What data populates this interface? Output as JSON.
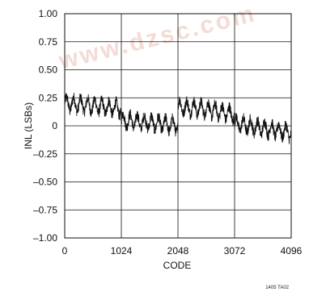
{
  "chart_data": {
    "type": "line",
    "title": "",
    "xlabel": "CODE",
    "ylabel": "INL (LSBs)",
    "xlim": [
      0,
      4096
    ],
    "ylim": [
      -1.0,
      1.0
    ],
    "x_ticks": [
      0,
      1024,
      2048,
      3072,
      4096
    ],
    "x_tick_labels": [
      "0",
      "1024",
      "2048",
      "3072",
      "4096"
    ],
    "y_ticks": [
      1.0,
      0.75,
      0.5,
      0.25,
      0,
      -0.25,
      -0.5,
      -0.75,
      -1.0
    ],
    "y_tick_labels": [
      "1.00",
      "0.75",
      "0.50",
      "0.25",
      "0",
      "–0.25",
      "–0.50",
      "–0.75",
      "–1.00"
    ],
    "grid": true,
    "series_color": "#111111",
    "segments": [
      {
        "x_start": 0,
        "x_end": 512,
        "mean_start": 0.2,
        "mean_end": 0.18
      },
      {
        "x_start": 512,
        "x_end": 1024,
        "mean_start": 0.18,
        "mean_end": 0.15
      },
      {
        "x_start": 1024,
        "x_end": 1536,
        "mean_start": 0.05,
        "mean_end": 0.03
      },
      {
        "x_start": 1536,
        "x_end": 2048,
        "mean_start": 0.03,
        "mean_end": 0.0
      },
      {
        "x_start": 2048,
        "x_end": 2560,
        "mean_start": 0.17,
        "mean_end": 0.15
      },
      {
        "x_start": 2560,
        "x_end": 3072,
        "mean_start": 0.15,
        "mean_end": 0.1
      },
      {
        "x_start": 3072,
        "x_end": 3584,
        "mean_start": 0.02,
        "mean_end": -0.02
      },
      {
        "x_start": 3584,
        "x_end": 4096,
        "mean_start": -0.02,
        "mean_end": -0.06
      }
    ],
    "ripple_amplitude": 0.06,
    "noise_amplitude": 0.05
  },
  "watermark": {
    "text": "www.dzsc.com"
  },
  "footnote": "1405 TA02"
}
